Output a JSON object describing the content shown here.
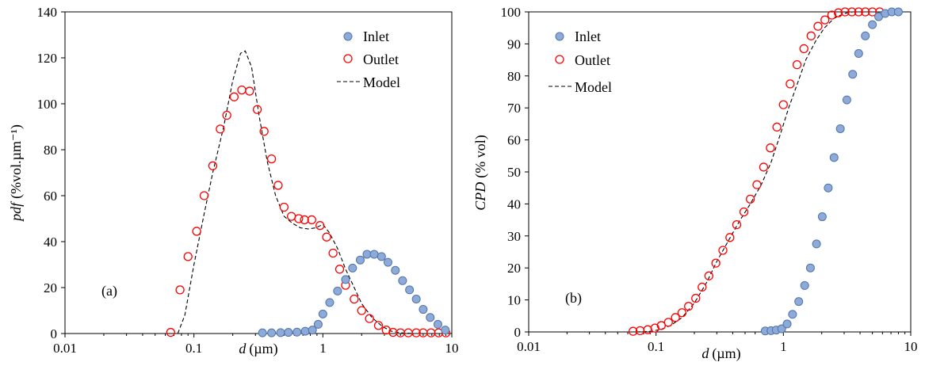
{
  "colors": {
    "inlet_fill": "#8eaad8",
    "inlet_stroke": "#4f74ab",
    "outlet_stroke": "#ff0000",
    "model_stroke": "#000000"
  },
  "chart_data": [
    {
      "type": "scatter",
      "panel_label": "(a)",
      "xlabel_var": "d",
      "xlabel_unit": "(µm)",
      "ylabel_var": "pdf",
      "ylabel_unit": "(%vol.µm⁻¹)",
      "xscale": "log",
      "xlim": [
        0.01,
        10
      ],
      "ylim": [
        0,
        140
      ],
      "x_ticks": [
        0.01,
        0.1,
        1,
        10
      ],
      "x_tick_labels": [
        "0.01",
        "0.1",
        "1",
        "10"
      ],
      "y_ticks": [
        0,
        20,
        40,
        60,
        80,
        100,
        120,
        140
      ],
      "y_tick_labels": [
        "0",
        "20",
        "40",
        "60",
        "80",
        "100",
        "120",
        "140"
      ],
      "legend_position": "top-right",
      "series": [
        {
          "name": "Inlet",
          "style": "filled-circle",
          "x": [
            0.34,
            0.4,
            0.47,
            0.54,
            0.63,
            0.73,
            0.83,
            0.92,
            1.0,
            1.13,
            1.3,
            1.5,
            1.7,
            1.95,
            2.2,
            2.5,
            2.85,
            3.2,
            3.65,
            4.15,
            4.7,
            5.3,
            6.0,
            6.8,
            7.8,
            8.9
          ],
          "y": [
            0.3,
            0.3,
            0.4,
            0.5,
            0.6,
            1.0,
            1.5,
            4.0,
            8.5,
            13.5,
            18.5,
            23.5,
            28.5,
            32.0,
            34.5,
            34.5,
            33.5,
            31.0,
            27.5,
            23.0,
            19.0,
            15.0,
            10.5,
            7.0,
            4.0,
            1.5
          ]
        },
        {
          "name": "Outlet",
          "style": "open-circle",
          "x": [
            0.066,
            0.078,
            0.09,
            0.105,
            0.12,
            0.14,
            0.16,
            0.18,
            0.205,
            0.235,
            0.27,
            0.31,
            0.35,
            0.4,
            0.45,
            0.5,
            0.57,
            0.65,
            0.72,
            0.82,
            0.95,
            1.07,
            1.2,
            1.35,
            1.5,
            1.75,
            2.0,
            2.3,
            2.7,
            3.1,
            3.5,
            4.0,
            4.6,
            5.3,
            6.0,
            6.9,
            7.9,
            9.0
          ],
          "y": [
            0.5,
            19,
            33.5,
            44.5,
            60,
            73,
            89,
            95,
            103,
            106,
            105.5,
            97.5,
            88,
            76,
            64.5,
            55,
            51,
            50,
            49.5,
            49.5,
            47,
            42,
            35,
            28,
            21,
            15,
            10,
            6.5,
            3.5,
            1.5,
            0.5,
            0.3,
            0.3,
            0.3,
            0.3,
            0.3,
            0.3,
            0.3
          ]
        },
        {
          "name": "Model",
          "style": "dashed-line",
          "x": [
            0.075,
            0.085,
            0.1,
            0.12,
            0.14,
            0.17,
            0.2,
            0.23,
            0.25,
            0.28,
            0.32,
            0.37,
            0.43,
            0.5,
            0.58,
            0.67,
            0.77,
            0.88,
            1.0,
            1.12,
            1.3,
            1.5,
            1.75,
            2.0,
            2.4,
            2.9,
            3.4,
            4.0,
            5.0,
            10
          ],
          "y": [
            0,
            8,
            30,
            52,
            70,
            90,
            110,
            122,
            123,
            116,
            95,
            75,
            60,
            51,
            48,
            46,
            45.5,
            46,
            47.5,
            44,
            37,
            28,
            20,
            13,
            7,
            3,
            1,
            0.3,
            0,
            0
          ]
        }
      ]
    },
    {
      "type": "scatter",
      "panel_label": "(b)",
      "xlabel_var": "d",
      "xlabel_unit": "(µm)",
      "ylabel_var": "CPD",
      "ylabel_unit": "(% vol)",
      "xscale": "log",
      "xlim": [
        0.01,
        10
      ],
      "ylim": [
        0,
        100
      ],
      "x_ticks": [
        0.01,
        0.1,
        1,
        10
      ],
      "x_tick_labels": [
        "0.01",
        "0.1",
        "1",
        "10"
      ],
      "y_ticks": [
        0,
        10,
        20,
        30,
        40,
        50,
        60,
        70,
        80,
        90,
        100
      ],
      "y_tick_labels": [
        "0",
        "10",
        "20",
        "30",
        "40",
        "50",
        "60",
        "70",
        "80",
        "90",
        "100"
      ],
      "legend_position": "top-left",
      "series": [
        {
          "name": "Inlet",
          "style": "filled-circle",
          "x": [
            0.72,
            0.8,
            0.88,
            0.97,
            1.07,
            1.18,
            1.32,
            1.47,
            1.63,
            1.82,
            2.02,
            2.25,
            2.5,
            2.8,
            3.15,
            3.5,
            3.9,
            4.4,
            5.0,
            5.6,
            6.3,
            7.1,
            8.0
          ],
          "y": [
            0.3,
            0.4,
            0.6,
            1.0,
            2.5,
            5.5,
            9.5,
            14.5,
            20,
            27.5,
            36,
            45,
            54.5,
            63.5,
            72.5,
            80.5,
            87,
            92.5,
            96,
            98.5,
            99.5,
            100,
            100
          ]
        },
        {
          "name": "Outlet",
          "style": "open-circle",
          "x": [
            0.066,
            0.075,
            0.086,
            0.098,
            0.11,
            0.125,
            0.142,
            0.16,
            0.18,
            0.205,
            0.23,
            0.26,
            0.295,
            0.335,
            0.38,
            0.43,
            0.49,
            0.55,
            0.62,
            0.7,
            0.79,
            0.89,
            1.0,
            1.13,
            1.28,
            1.45,
            1.65,
            1.87,
            2.12,
            2.4,
            2.7,
            3.05,
            3.45,
            3.9,
            4.4,
            5.0,
            5.7
          ],
          "y": [
            0.2,
            0.4,
            0.7,
            1.2,
            2,
            3,
            4.5,
            6,
            8,
            10.5,
            14,
            17.5,
            21.5,
            25.5,
            29.5,
            33.5,
            37.5,
            41.5,
            46,
            51.5,
            57.5,
            64,
            71,
            77.5,
            83.5,
            88.5,
            92.5,
            95.5,
            97.5,
            99,
            99.7,
            100,
            100,
            100,
            100,
            100,
            100
          ]
        },
        {
          "name": "Model",
          "style": "dashed-line",
          "x": [
            0.07,
            0.09,
            0.11,
            0.13,
            0.16,
            0.2,
            0.25,
            0.3,
            0.37,
            0.45,
            0.55,
            0.67,
            0.8,
            0.95,
            1.1,
            1.3,
            1.5,
            1.8,
            2.1,
            2.5,
            3.0,
            3.5,
            4.0,
            5.0,
            6.0
          ],
          "y": [
            0,
            0.2,
            0.8,
            2,
            4.5,
            9,
            15.5,
            22,
            28.5,
            34.5,
            40,
            46,
            53,
            62,
            70,
            78,
            85,
            91,
            95,
            98,
            99.5,
            100,
            100,
            100,
            100
          ]
        }
      ]
    }
  ]
}
